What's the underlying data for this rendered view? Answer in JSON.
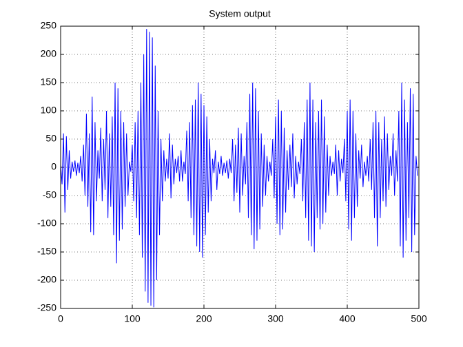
{
  "chart_data": {
    "type": "line",
    "title": "System output",
    "x": [
      0,
      2,
      4,
      6,
      8,
      10,
      12,
      14,
      16,
      18,
      20,
      22,
      24,
      26,
      28,
      30,
      32,
      34,
      36,
      38,
      40,
      42,
      44,
      46,
      48,
      50,
      52,
      54,
      56,
      58,
      60,
      62,
      64,
      66,
      68,
      70,
      72,
      74,
      76,
      78,
      80,
      82,
      84,
      86,
      88,
      90,
      92,
      94,
      96,
      98,
      100,
      102,
      104,
      106,
      108,
      110,
      112,
      114,
      116,
      118,
      120,
      122,
      124,
      126,
      128,
      130,
      132,
      134,
      136,
      138,
      140,
      142,
      144,
      146,
      148,
      150,
      152,
      154,
      156,
      158,
      160,
      162,
      164,
      166,
      168,
      170,
      172,
      174,
      176,
      178,
      180,
      182,
      184,
      186,
      188,
      190,
      192,
      194,
      196,
      198,
      200,
      202,
      204,
      206,
      208,
      210,
      212,
      214,
      216,
      218,
      220,
      222,
      224,
      226,
      228,
      230,
      232,
      234,
      236,
      238,
      240,
      242,
      244,
      246,
      248,
      250,
      252,
      254,
      256,
      258,
      260,
      262,
      264,
      266,
      268,
      270,
      272,
      274,
      276,
      278,
      280,
      282,
      284,
      286,
      288,
      290,
      292,
      294,
      296,
      298,
      300,
      302,
      304,
      306,
      308,
      310,
      312,
      314,
      316,
      318,
      320,
      322,
      324,
      326,
      328,
      330,
      332,
      334,
      336,
      338,
      340,
      342,
      344,
      346,
      348,
      350,
      352,
      354,
      356,
      358,
      360,
      362,
      364,
      366,
      368,
      370,
      372,
      374,
      376,
      378,
      380,
      382,
      384,
      386,
      388,
      390,
      392,
      394,
      396,
      398,
      400,
      402,
      404,
      406,
      408,
      410,
      412,
      414,
      416,
      418,
      420,
      422,
      424,
      426,
      428,
      430,
      432,
      434,
      436,
      438,
      440,
      442,
      444,
      446,
      448,
      450,
      452,
      454,
      456,
      458,
      460,
      462,
      464,
      466,
      468,
      470,
      472,
      474,
      476,
      478,
      480,
      482,
      484,
      486,
      488,
      490,
      492,
      494,
      496,
      498
    ],
    "series": [
      {
        "color": "#0000ff",
        "values": [
          5,
          -30,
          60,
          -80,
          55,
          -40,
          30,
          -20,
          10,
          -8,
          12,
          -15,
          8,
          -10,
          20,
          -25,
          40,
          -50,
          95,
          -70,
          60,
          -115,
          125,
          -120,
          80,
          -60,
          30,
          -20,
          70,
          -60,
          50,
          -40,
          100,
          -90,
          60,
          -70,
          90,
          -120,
          150,
          -170,
          140,
          -130,
          100,
          -110,
          80,
          -70,
          60,
          -50,
          10,
          -8,
          40,
          -60,
          80,
          -90,
          100,
          -120,
          150,
          -160,
          200,
          -220,
          245,
          -240,
          240,
          -245,
          230,
          -248,
          180,
          -200,
          100,
          -120,
          50,
          -60,
          30,
          -25,
          15,
          -20,
          60,
          -55,
          40,
          -30,
          15,
          -10,
          20,
          -25,
          30,
          -25,
          10,
          -12,
          65,
          -60,
          80,
          -90,
          110,
          -120,
          120,
          -140,
          150,
          -150,
          130,
          -160,
          110,
          -120,
          90,
          -80,
          50,
          -60,
          15,
          -10,
          30,
          -40,
          10,
          -12,
          20,
          -15,
          8,
          -10,
          12,
          -20,
          15,
          -10,
          50,
          -60,
          40,
          -45,
          70,
          -80,
          60,
          -50,
          20,
          -30,
          80,
          -90,
          130,
          -120,
          150,
          -145,
          140,
          -130,
          100,
          -110,
          60,
          -70,
          40,
          -50,
          20,
          -25,
          10,
          -15,
          50,
          -55,
          90,
          -100,
          120,
          -120,
          100,
          -110,
          70,
          -80,
          30,
          -40,
          40,
          -35,
          60,
          -55,
          20,
          -30,
          10,
          -12,
          50,
          -60,
          80,
          -90,
          120,
          -130,
          150,
          -140,
          120,
          -150,
          80,
          -90,
          100,
          -110,
          120,
          -100,
          90,
          -80,
          40,
          -50,
          20,
          -15,
          10,
          -12,
          40,
          -50,
          30,
          -25,
          15,
          -10,
          50,
          -60,
          100,
          -110,
          120,
          -130,
          100,
          -90,
          60,
          -70,
          30,
          -20,
          40,
          -35,
          10,
          -15,
          20,
          -25,
          50,
          -40,
          80,
          -90,
          100,
          -140,
          80,
          -90,
          50,
          -60,
          90,
          -70,
          60,
          -40,
          20,
          -15,
          60,
          -50,
          30,
          -25,
          100,
          -140,
          150,
          -160,
          120,
          -130,
          80,
          -90,
          140,
          -150,
          130,
          -120,
          20,
          -15
        ]
      }
    ],
    "xlim": [
      0,
      500
    ],
    "xticks": [
      0,
      100,
      200,
      300,
      400,
      500
    ],
    "ylim": [
      -250,
      250
    ],
    "yticks": [
      -250,
      -200,
      -150,
      -100,
      -50,
      0,
      50,
      100,
      150,
      200,
      250
    ],
    "grid": true
  }
}
